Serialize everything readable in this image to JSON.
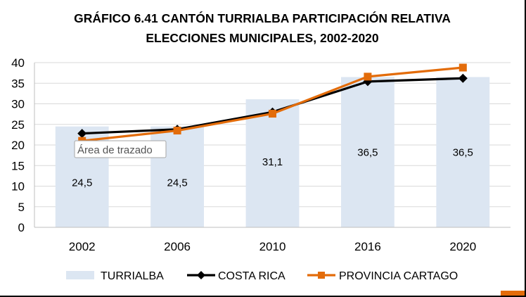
{
  "chart_data": {
    "type": "bar",
    "title_line1": "GRÁFICO 6.41 CANTÓN TURRIALBA PARTICIPACIÓN RELATIVA",
    "title_line2": "ELECCIONES MUNICIPALES, 2002-2020",
    "categories": [
      "2002",
      "2006",
      "2010",
      "2016",
      "2020"
    ],
    "ylim": [
      0,
      40
    ],
    "yticks": [
      "0",
      "5",
      "10",
      "15",
      "20",
      "25",
      "30",
      "35",
      "40"
    ],
    "grid": true,
    "legend_position": "bottom",
    "bar_series": {
      "name": "TURRIALBA",
      "values": [
        24.5,
        24.5,
        31.1,
        36.5,
        36.5
      ],
      "labels": [
        "24,5",
        "24,5",
        "31,1",
        "36,5",
        "36,5"
      ],
      "color": "#dce6f2"
    },
    "line_series": [
      {
        "name": "COSTA RICA",
        "values": [
          22.8,
          23.8,
          28.0,
          35.4,
          36.2
        ],
        "color": "#000000",
        "marker": "diamond"
      },
      {
        "name": "PROVINCIA CARTAGO",
        "values": [
          21.0,
          23.5,
          27.6,
          36.6,
          38.8
        ],
        "color": "#e36c0a",
        "marker": "square"
      }
    ],
    "tooltip": "Área de trazado"
  }
}
